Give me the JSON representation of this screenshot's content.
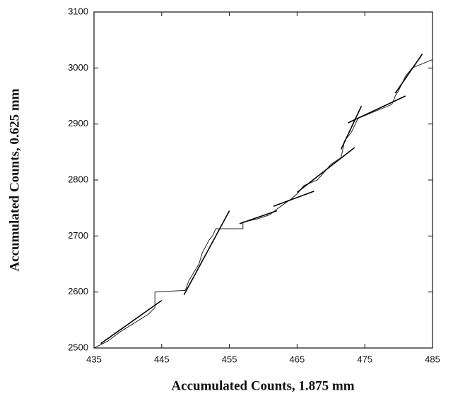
{
  "chart_data": {
    "type": "line",
    "x_label": "Accumulated Counts, 1.875 mm",
    "y_label": "Accumulated Counts, 0.625 mm",
    "xlim": [
      435,
      485
    ],
    "xticks": [
      435,
      445,
      455,
      465,
      475,
      485
    ],
    "ylim": [
      2500,
      3100
    ],
    "yticks": [
      2500,
      2600,
      2700,
      2800,
      2900,
      3000,
      3100
    ],
    "series": [
      {
        "color": "#222",
        "width": 1,
        "x": [
          435,
          437,
          439,
          441,
          443,
          444,
          444,
          448.5,
          449,
          450.5,
          451,
          452,
          452.5,
          453,
          457,
          457,
          459,
          461,
          462,
          464,
          465,
          466,
          468,
          470,
          471.5,
          472,
          473,
          474,
          477,
          479,
          479.5,
          480,
          481,
          482,
          485
        ],
        "values": [
          2500,
          2512,
          2530,
          2545,
          2560,
          2572,
          2600,
          2603,
          2620,
          2650,
          2670,
          2693,
          2700,
          2713,
          2713,
          2725,
          2730,
          2738,
          2748,
          2765,
          2775,
          2790,
          2800,
          2828,
          2840,
          2870,
          2885,
          2910,
          2925,
          2935,
          2950,
          2960,
          2985,
          3000,
          3015
        ]
      },
      {
        "color": "#000",
        "width": 1.6,
        "x": [
          436,
          445
        ],
        "values": [
          2508,
          2585
        ]
      },
      {
        "color": "#000",
        "width": 1.6,
        "x": [
          448.3,
          455
        ],
        "values": [
          2595,
          2745
        ]
      },
      {
        "color": "#000",
        "width": 1.6,
        "x": [
          456.5,
          462
        ],
        "values": [
          2722,
          2745
        ]
      },
      {
        "color": "#000",
        "width": 1.6,
        "x": [
          461.5,
          467.5
        ],
        "values": [
          2753,
          2780
        ]
      },
      {
        "color": "#000",
        "width": 1.6,
        "x": [
          465,
          473.5
        ],
        "values": [
          2778,
          2858
        ]
      },
      {
        "color": "#000",
        "width": 1.6,
        "x": [
          471.5,
          474.5
        ],
        "values": [
          2855,
          2932
        ]
      },
      {
        "color": "#000",
        "width": 1.6,
        "x": [
          472.5,
          481
        ],
        "values": [
          2902,
          2950
        ]
      },
      {
        "color": "#000",
        "width": 1.6,
        "x": [
          479.5,
          483.5
        ],
        "values": [
          2955,
          3025
        ]
      }
    ]
  }
}
